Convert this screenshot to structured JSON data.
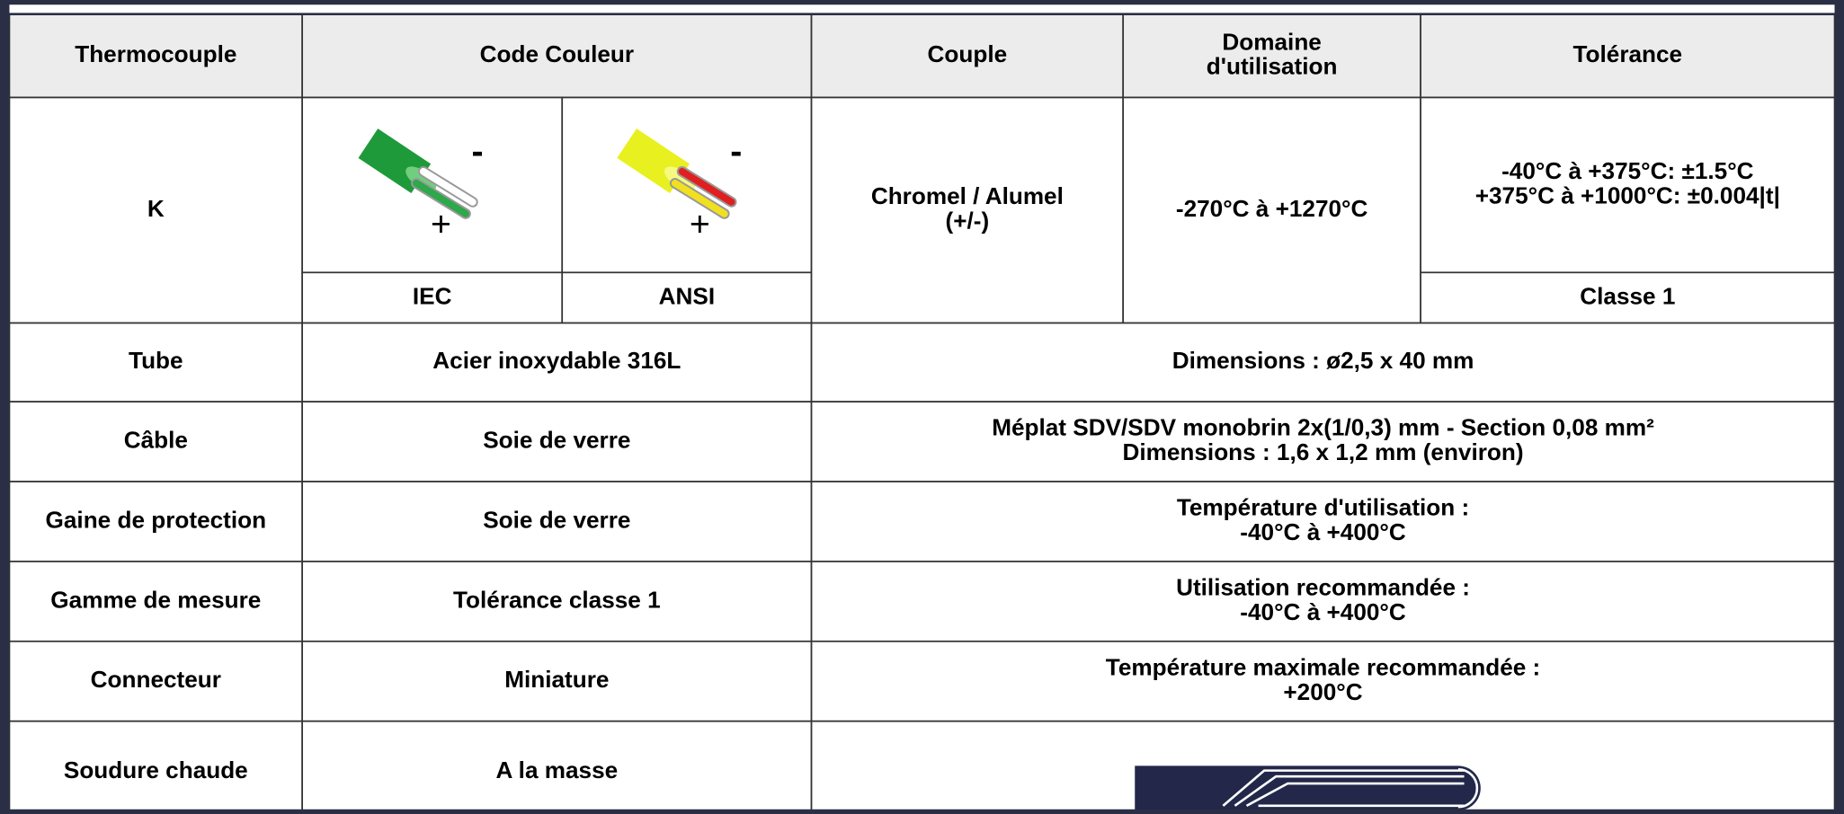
{
  "table": {
    "header": [
      [
        "Thermocouple"
      ],
      [
        "Code Couleur"
      ],
      [
        "Couple"
      ],
      [
        "Domaine",
        "d'utilisation"
      ],
      [
        "Tolérance"
      ]
    ],
    "k_row": {
      "thermocouple": "K",
      "color_codes": [
        "IEC",
        "ANSI"
      ],
      "polarity": {
        "minus": "-",
        "plus": "+"
      },
      "couple": [
        "Chromel / Alumel",
        "(+/-)"
      ],
      "domaine": [
        "-270°C à +1270°C"
      ],
      "tolerance": [
        "-40°C à +375°C: ±1.5°C",
        "+375°C à +1000°C: ±0.004|t|"
      ],
      "classe": "Classe 1"
    },
    "rows": [
      [
        [
          "Tube"
        ],
        [
          "Acier inoxydable 316L"
        ],
        [
          "Dimensions : ø2,5 x 40 mm"
        ]
      ],
      [
        [
          "Câble"
        ],
        [
          "Soie de verre"
        ],
        [
          "Méplat SDV/SDV monobrin 2x(1/0,3) mm - Section 0,08 mm²",
          "Dimensions : 1,6 x 1,2 mm (environ)"
        ]
      ],
      [
        [
          "Gaine de protection"
        ],
        [
          "Soie de verre"
        ],
        [
          "Température d'utilisation :",
          "-40°C à +400°C"
        ]
      ],
      [
        [
          "Gamme de mesure"
        ],
        [
          "Tolérance classe 1"
        ],
        [
          "Utilisation recommandée :",
          "-40°C à +400°C"
        ]
      ],
      [
        [
          "Connecteur"
        ],
        [
          "Miniature"
        ],
        [
          "Température maximale recommandée :",
          "+200°C"
        ]
      ],
      [
        [
          "Soudure chaude"
        ],
        [
          "A la masse"
        ],
        []
      ]
    ]
  }
}
